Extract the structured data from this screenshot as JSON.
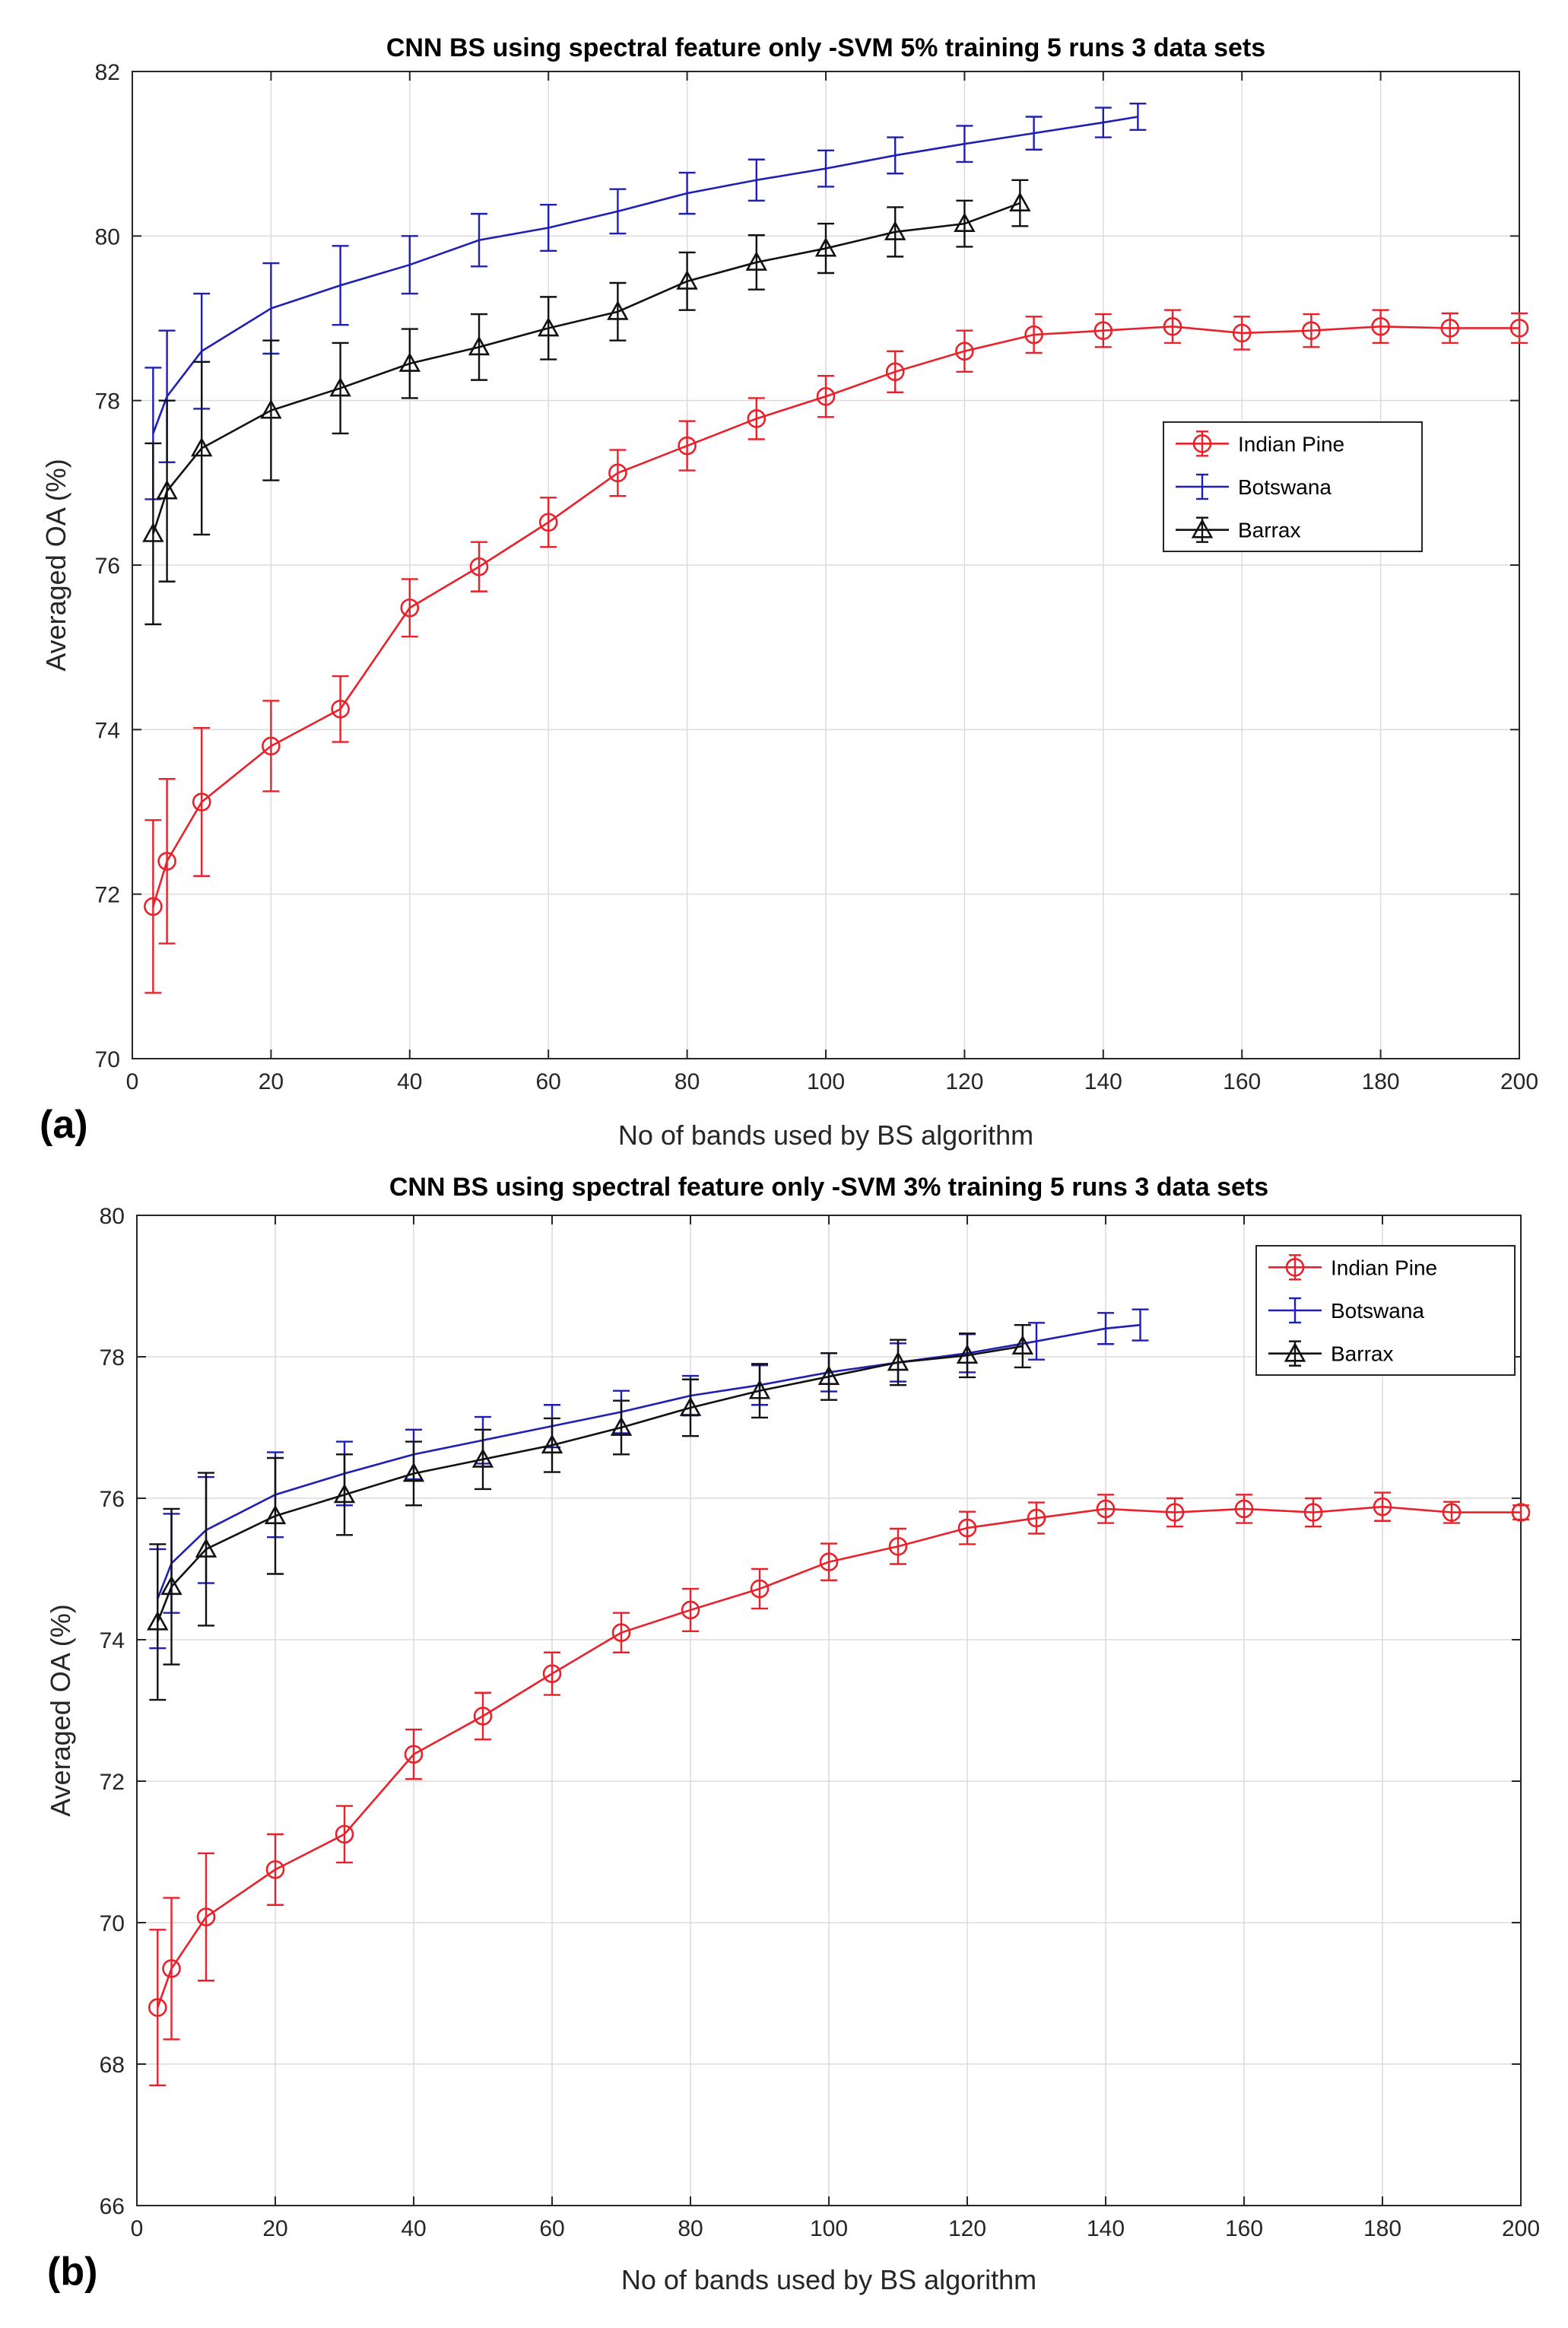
{
  "chart_data": [
    {
      "type": "line",
      "panel_label": "(a)",
      "title": "CNN BS using spectral feature only -SVM 5% training 5 runs 3 data sets",
      "xlabel": "No of bands used by BS algorithm",
      "ylabel": "Averaged OA (%)",
      "xlim": [
        0,
        200
      ],
      "ylim": [
        70,
        82
      ],
      "xticks": [
        0,
        20,
        40,
        60,
        80,
        100,
        120,
        140,
        160,
        180,
        200
      ],
      "yticks": [
        70,
        72,
        74,
        76,
        78,
        80,
        82
      ],
      "grid": true,
      "legend_position": "center-right",
      "series": [
        {
          "name": "Indian Pine",
          "color": "#e8212a",
          "marker": "circle",
          "x": [
            3,
            5,
            10,
            20,
            30,
            40,
            50,
            60,
            70,
            80,
            90,
            100,
            110,
            120,
            130,
            140,
            150,
            160,
            170,
            180,
            190,
            200
          ],
          "y": [
            71.85,
            72.4,
            73.12,
            73.8,
            74.25,
            75.48,
            75.98,
            76.52,
            77.12,
            77.45,
            77.78,
            78.05,
            78.35,
            78.6,
            78.8,
            78.85,
            78.9,
            78.82,
            78.85,
            78.9,
            78.88,
            78.88
          ],
          "err": [
            1.05,
            1.0,
            0.9,
            0.55,
            0.4,
            0.35,
            0.3,
            0.3,
            0.28,
            0.3,
            0.25,
            0.25,
            0.25,
            0.25,
            0.22,
            0.2,
            0.2,
            0.2,
            0.2,
            0.2,
            0.18,
            0.18
          ]
        },
        {
          "name": "Botswana",
          "color": "#1f1fb4",
          "marker": "none",
          "x": [
            3,
            5,
            10,
            20,
            30,
            40,
            50,
            60,
            70,
            80,
            90,
            100,
            110,
            120,
            130,
            140,
            145
          ],
          "y": [
            77.6,
            78.05,
            78.6,
            79.12,
            79.4,
            79.65,
            79.95,
            80.1,
            80.3,
            80.52,
            80.68,
            80.82,
            80.98,
            81.12,
            81.25,
            81.38,
            81.45
          ],
          "err": [
            0.8,
            0.8,
            0.7,
            0.55,
            0.48,
            0.35,
            0.32,
            0.28,
            0.27,
            0.25,
            0.25,
            0.22,
            0.22,
            0.22,
            0.2,
            0.18,
            0.16
          ]
        },
        {
          "name": "Barrax",
          "color": "#111111",
          "marker": "triangle",
          "x": [
            3,
            5,
            10,
            20,
            30,
            40,
            50,
            60,
            70,
            80,
            90,
            100,
            110,
            120,
            128
          ],
          "y": [
            76.38,
            76.9,
            77.42,
            77.88,
            78.15,
            78.45,
            78.65,
            78.88,
            79.08,
            79.45,
            79.68,
            79.85,
            80.05,
            80.15,
            80.4
          ],
          "err": [
            1.1,
            1.1,
            1.05,
            0.85,
            0.55,
            0.42,
            0.4,
            0.38,
            0.35,
            0.35,
            0.33,
            0.3,
            0.3,
            0.28,
            0.28
          ]
        }
      ]
    },
    {
      "type": "line",
      "panel_label": "(b)",
      "title": "CNN BS using spectral feature only -SVM 3% training 5 runs 3 data sets",
      "xlabel": "No of bands used by BS algorithm",
      "ylabel": "Averaged OA (%)",
      "xlim": [
        0,
        200
      ],
      "ylim": [
        66,
        80
      ],
      "xticks": [
        0,
        20,
        40,
        60,
        80,
        100,
        120,
        140,
        160,
        180,
        200
      ],
      "yticks": [
        66,
        68,
        70,
        72,
        74,
        76,
        78,
        80
      ],
      "grid": true,
      "legend_position": "top-right",
      "series": [
        {
          "name": "Indian Pine",
          "color": "#e8212a",
          "marker": "circle",
          "x": [
            3,
            5,
            10,
            20,
            30,
            40,
            50,
            60,
            70,
            80,
            90,
            100,
            110,
            120,
            130,
            140,
            150,
            160,
            170,
            180,
            190,
            200
          ],
          "y": [
            68.8,
            69.35,
            70.08,
            70.75,
            71.25,
            72.38,
            72.92,
            73.52,
            74.1,
            74.42,
            74.72,
            75.1,
            75.32,
            75.58,
            75.72,
            75.85,
            75.8,
            75.85,
            75.8,
            75.88,
            75.8,
            75.8
          ],
          "err": [
            1.1,
            1.0,
            0.9,
            0.5,
            0.4,
            0.35,
            0.33,
            0.3,
            0.28,
            0.3,
            0.28,
            0.26,
            0.25,
            0.23,
            0.22,
            0.2,
            0.2,
            0.2,
            0.2,
            0.2,
            0.15,
            0.1
          ]
        },
        {
          "name": "Botswana",
          "color": "#1f1fb4",
          "marker": "none",
          "x": [
            3,
            5,
            10,
            20,
            30,
            40,
            50,
            60,
            70,
            80,
            90,
            100,
            110,
            120,
            130,
            140,
            145
          ],
          "y": [
            74.58,
            75.08,
            75.55,
            76.05,
            76.35,
            76.62,
            76.82,
            77.02,
            77.22,
            77.45,
            77.6,
            77.78,
            77.92,
            78.05,
            78.22,
            78.4,
            78.45
          ],
          "err": [
            0.7,
            0.7,
            0.75,
            0.6,
            0.45,
            0.35,
            0.33,
            0.3,
            0.3,
            0.28,
            0.28,
            0.27,
            0.27,
            0.27,
            0.26,
            0.22,
            0.22
          ]
        },
        {
          "name": "Barrax",
          "color": "#111111",
          "marker": "triangle",
          "x": [
            3,
            5,
            10,
            20,
            30,
            40,
            50,
            60,
            70,
            80,
            90,
            100,
            110,
            120,
            128
          ],
          "y": [
            74.25,
            74.75,
            75.28,
            75.75,
            76.05,
            76.35,
            76.55,
            76.75,
            77.0,
            77.28,
            77.52,
            77.72,
            77.92,
            78.02,
            78.15
          ],
          "err": [
            1.1,
            1.1,
            1.08,
            0.82,
            0.57,
            0.45,
            0.42,
            0.38,
            0.38,
            0.4,
            0.38,
            0.33,
            0.32,
            0.31,
            0.3
          ]
        }
      ]
    }
  ]
}
